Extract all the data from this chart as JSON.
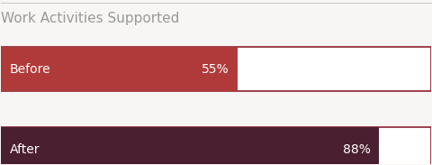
{
  "title": "Work Activities Supported",
  "title_color": "#999999",
  "title_fontsize": 11,
  "categories": [
    "Before",
    "After"
  ],
  "values": [
    55,
    88
  ],
  "max_value": 100,
  "bar_colors": [
    "#b03a3a",
    "#4a2030"
  ],
  "outline_color": "#8b2030",
  "bar_text_color": "#ffffff",
  "bar_fontsize": 10,
  "background_color": "#f7f6f4",
  "bar_height": 0.55,
  "label_fontsize": 10
}
